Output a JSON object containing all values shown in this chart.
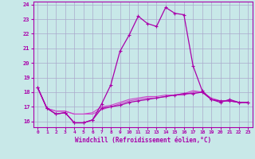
{
  "xlabel": "Windchill (Refroidissement éolien,°C)",
  "background_color": "#c8e8e8",
  "grid_color": "#aaaacc",
  "line_color": "#aa00aa",
  "line_color2": "#cc44cc",
  "xlim": [
    -0.5,
    23.5
  ],
  "ylim": [
    15.6,
    24.2
  ],
  "yticks": [
    16,
    17,
    18,
    19,
    20,
    21,
    22,
    23,
    24
  ],
  "xticks": [
    0,
    1,
    2,
    3,
    4,
    5,
    6,
    7,
    8,
    9,
    10,
    11,
    12,
    13,
    14,
    15,
    16,
    17,
    18,
    19,
    20,
    21,
    22,
    23
  ],
  "line1_x": [
    0,
    1,
    2,
    3,
    4,
    5,
    6,
    7,
    8,
    9,
    10,
    11,
    12,
    13,
    14,
    15,
    16,
    17,
    18,
    19,
    20,
    21,
    22,
    23
  ],
  "line1_y": [
    18.3,
    16.9,
    16.5,
    16.6,
    15.9,
    15.9,
    16.1,
    17.2,
    18.5,
    20.8,
    21.9,
    23.2,
    22.7,
    22.5,
    23.8,
    23.4,
    23.3,
    19.8,
    18.1,
    17.5,
    17.3,
    17.5,
    17.3,
    17.3
  ],
  "line2_x": [
    0,
    1,
    2,
    3,
    4,
    5,
    6,
    7,
    8,
    9,
    10,
    11,
    12,
    13,
    14,
    15,
    16,
    17,
    18,
    19,
    20,
    21,
    22,
    23
  ],
  "line2_y": [
    18.3,
    16.9,
    16.5,
    16.6,
    15.9,
    15.9,
    16.1,
    16.9,
    17.0,
    17.1,
    17.3,
    17.4,
    17.5,
    17.6,
    17.7,
    17.8,
    17.9,
    17.9,
    18.0,
    17.5,
    17.4,
    17.4,
    17.3,
    17.3
  ],
  "line3_x": [
    0,
    1,
    2,
    3,
    4,
    5,
    6,
    7,
    8,
    9,
    10,
    11,
    12,
    13,
    14,
    15,
    16,
    17,
    18,
    19,
    20,
    21,
    22,
    23
  ],
  "line3_y": [
    18.3,
    16.9,
    16.7,
    16.7,
    16.5,
    16.5,
    16.5,
    16.8,
    17.0,
    17.2,
    17.4,
    17.5,
    17.6,
    17.6,
    17.7,
    17.8,
    17.8,
    18.0,
    18.0,
    17.5,
    17.4,
    17.4,
    17.3,
    17.3
  ],
  "line4_x": [
    0,
    1,
    2,
    3,
    4,
    5,
    6,
    7,
    8,
    9,
    10,
    11,
    12,
    13,
    14,
    15,
    16,
    17,
    18,
    19,
    20,
    21,
    22,
    23
  ],
  "line4_y": [
    18.3,
    16.9,
    16.7,
    16.7,
    16.5,
    16.5,
    16.6,
    17.0,
    17.1,
    17.3,
    17.5,
    17.6,
    17.7,
    17.7,
    17.8,
    17.8,
    17.9,
    18.1,
    18.0,
    17.6,
    17.4,
    17.4,
    17.3,
    17.3
  ]
}
